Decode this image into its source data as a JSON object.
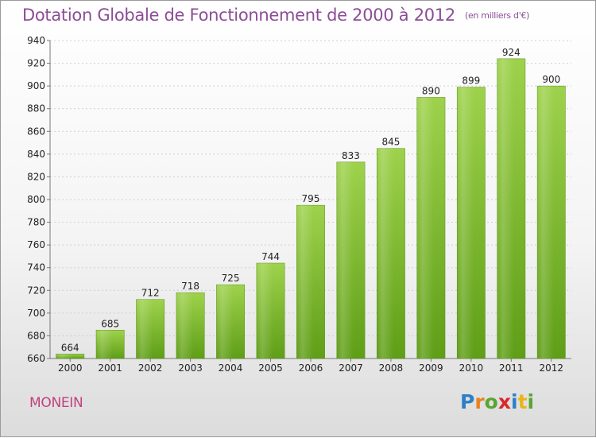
{
  "chart_data": {
    "type": "bar",
    "title": "Dotation Globale de Fonctionnement de 2000 à 2012",
    "subtitle": "(en milliers d'€)",
    "categories": [
      "2000",
      "2001",
      "2002",
      "2003",
      "2004",
      "2005",
      "2006",
      "2007",
      "2008",
      "2009",
      "2010",
      "2011",
      "2012"
    ],
    "values": [
      664,
      685,
      712,
      718,
      725,
      744,
      795,
      833,
      845,
      890,
      899,
      924,
      900
    ],
    "ylim": [
      660,
      940
    ],
    "yticks": [
      660,
      680,
      700,
      720,
      740,
      760,
      780,
      800,
      820,
      840,
      860,
      880,
      900,
      920,
      940
    ],
    "grid": true,
    "bar_color": "#7ab82e"
  },
  "city": "MONEIN",
  "logo": {
    "letters": [
      "P",
      "r",
      "o",
      "x",
      "i",
      "t",
      "i"
    ]
  }
}
